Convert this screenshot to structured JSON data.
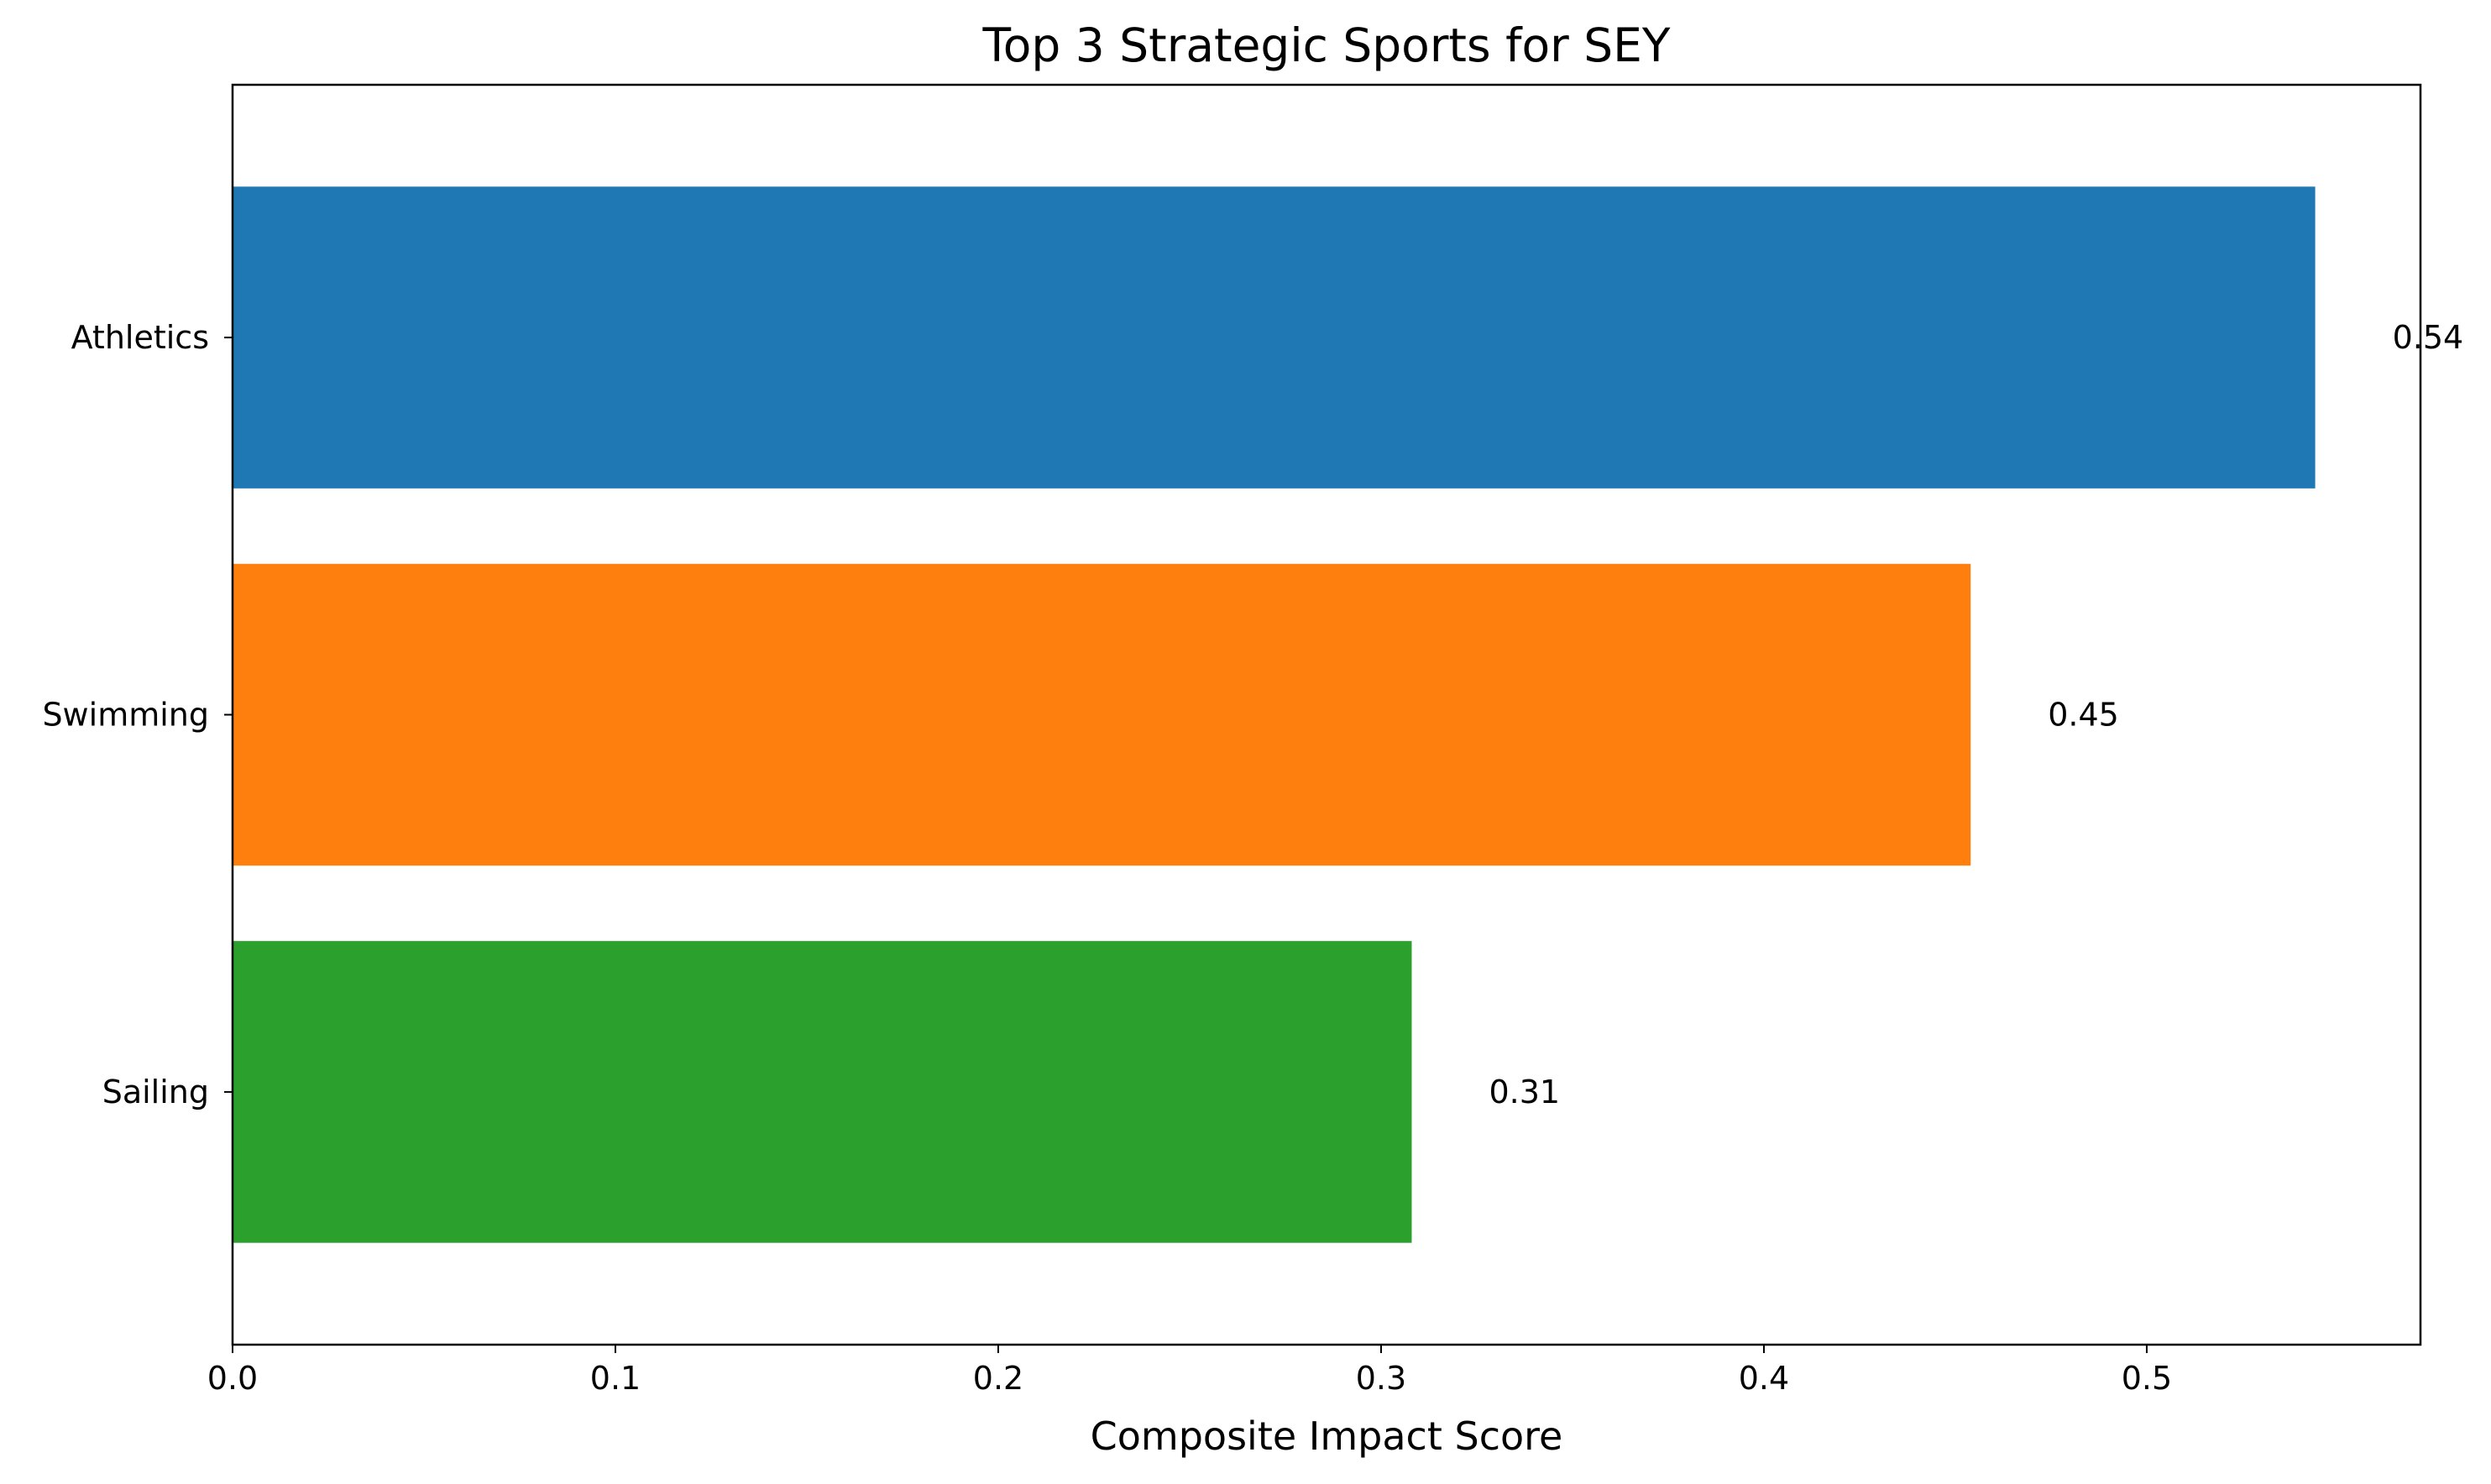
{
  "chart_data": {
    "type": "bar",
    "orientation": "horizontal",
    "title": "Top 3 Strategic Sports for SEY",
    "xlabel": "Composite Impact Score",
    "ylabel": "",
    "categories": [
      "Athletics",
      "Swimming",
      "Sailing"
    ],
    "values": [
      0.544,
      0.454,
      0.308
    ],
    "value_labels": [
      "0.54",
      "0.45",
      "0.31"
    ],
    "colors": [
      "#1f77b4",
      "#ff7f0e",
      "#2ca02c"
    ],
    "xlim": [
      0,
      0.5715
    ],
    "xticks": [
      0.0,
      0.1,
      0.2,
      0.3,
      0.4,
      0.5
    ],
    "xtick_labels": [
      "0.0",
      "0.1",
      "0.2",
      "0.3",
      "0.4",
      "0.5"
    ],
    "grid": false,
    "legend": "none"
  }
}
